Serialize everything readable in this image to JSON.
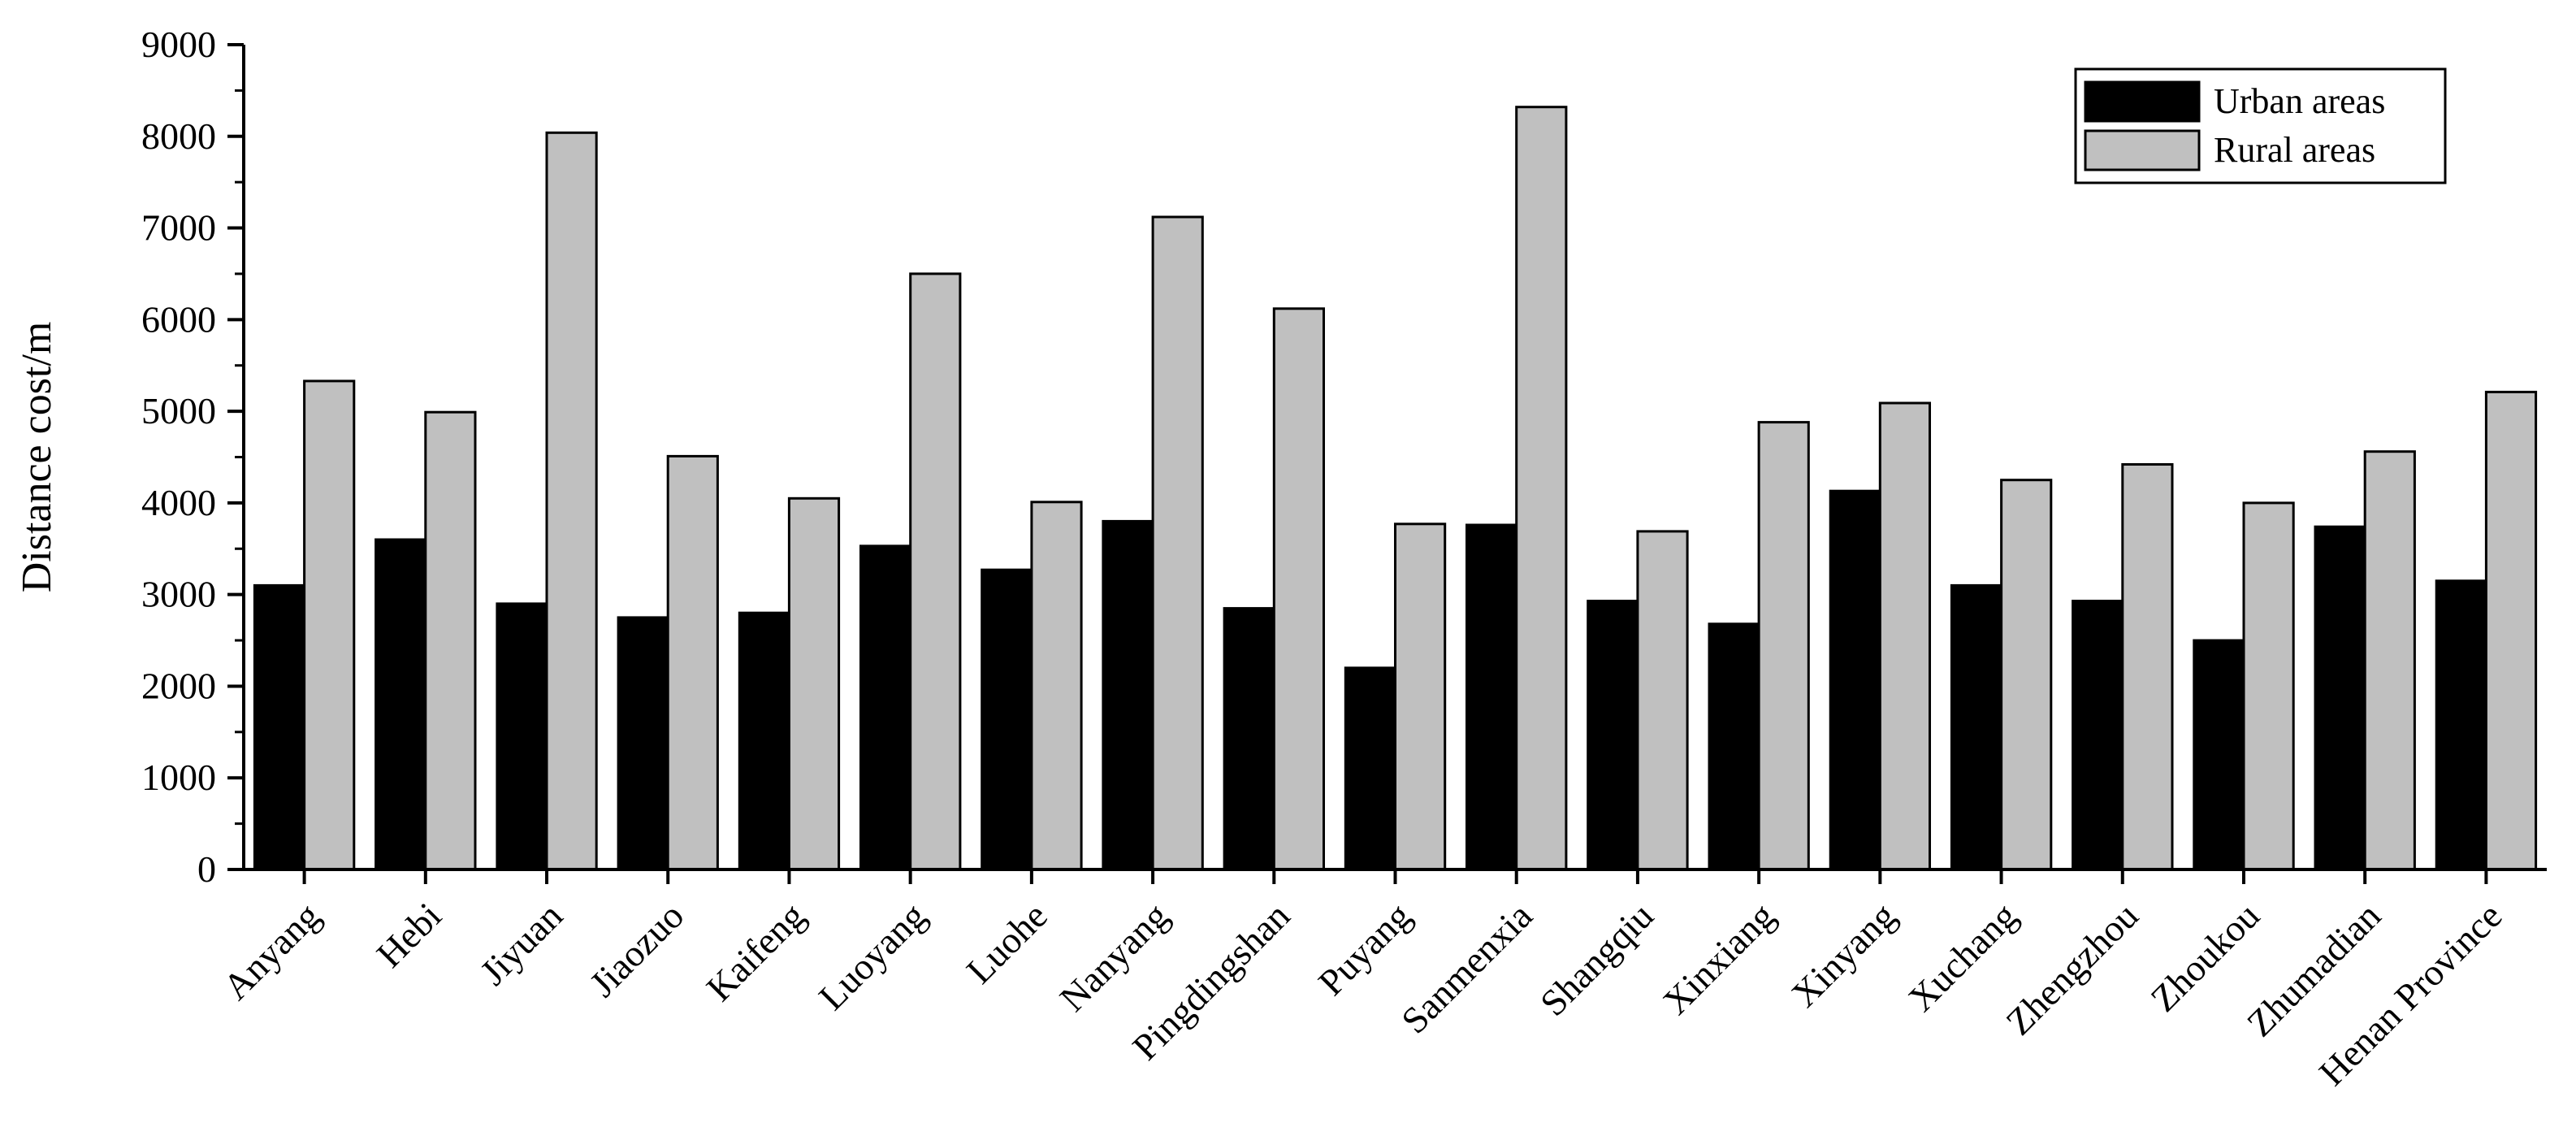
{
  "chart_data": {
    "type": "bar",
    "title": "",
    "xlabel": "",
    "ylabel": "Distance cost/m",
    "ylim": [
      0,
      9000
    ],
    "yticks": [
      0,
      1000,
      2000,
      3000,
      4000,
      5000,
      6000,
      7000,
      8000,
      9000
    ],
    "grid": false,
    "legend_position": "top-right",
    "categories": [
      "Anyang",
      "Hebi",
      "Jiyuan",
      "Jiaozuo",
      "Kaifeng",
      "Luoyang",
      "Luohe",
      "Nanyang",
      "Pingdingshan",
      "Puyang",
      "Sanmenxia",
      "Shangqiu",
      "Xinxiang",
      "Xinyang",
      "Xuchang",
      "Zhengzhou",
      "Zhoukou",
      "Zhumadian",
      "Henan Province"
    ],
    "series": [
      {
        "name": "Urban areas",
        "color": "#000000",
        "values": [
          3100,
          3600,
          2900,
          2750,
          2800,
          3530,
          3270,
          3800,
          2850,
          2200,
          3760,
          2930,
          2680,
          4130,
          3100,
          2930,
          2500,
          3740,
          3150
        ]
      },
      {
        "name": "Rural areas",
        "color": "#c0c0c0",
        "values": [
          5330,
          4990,
          8040,
          4510,
          4050,
          6500,
          4010,
          7120,
          6120,
          3770,
          8320,
          3690,
          4880,
          5090,
          4250,
          4420,
          4000,
          4560,
          5210
        ]
      }
    ]
  }
}
